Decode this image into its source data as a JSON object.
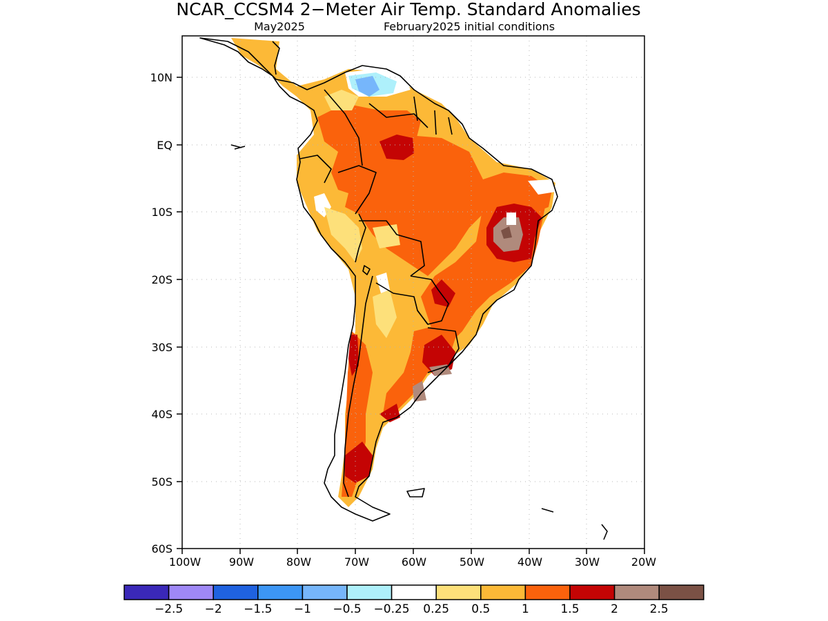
{
  "title": "NCAR_CCSM4 2−Meter Air Temp. Standard Anomalies",
  "subtitle_left": "May2025",
  "subtitle_right": "February2025 initial conditions",
  "lat_labels": [
    "10N",
    "EQ",
    "10S",
    "20S",
    "30S",
    "40S",
    "50S",
    "60S"
  ],
  "lon_labels": [
    "100W",
    "90W",
    "80W",
    "70W",
    "60W",
    "50W",
    "40W",
    "30W",
    "20W"
  ],
  "colorbar": {
    "labels": [
      "−2.5",
      "−2",
      "−1.5",
      "−1",
      "−0.5",
      "−0.25",
      "0.25",
      "0.5",
      "1",
      "1.5",
      "2",
      "2.5"
    ],
    "colors": [
      "#3a28b8",
      "#9f88f6",
      "#1f62e0",
      "#3c96f5",
      "#76b6fb",
      "#aef0fb",
      "#ffffff",
      "#fde07a",
      "#fcb937",
      "#fa620c",
      "#c40404",
      "#b08a7c",
      "#7b5145"
    ]
  }
}
